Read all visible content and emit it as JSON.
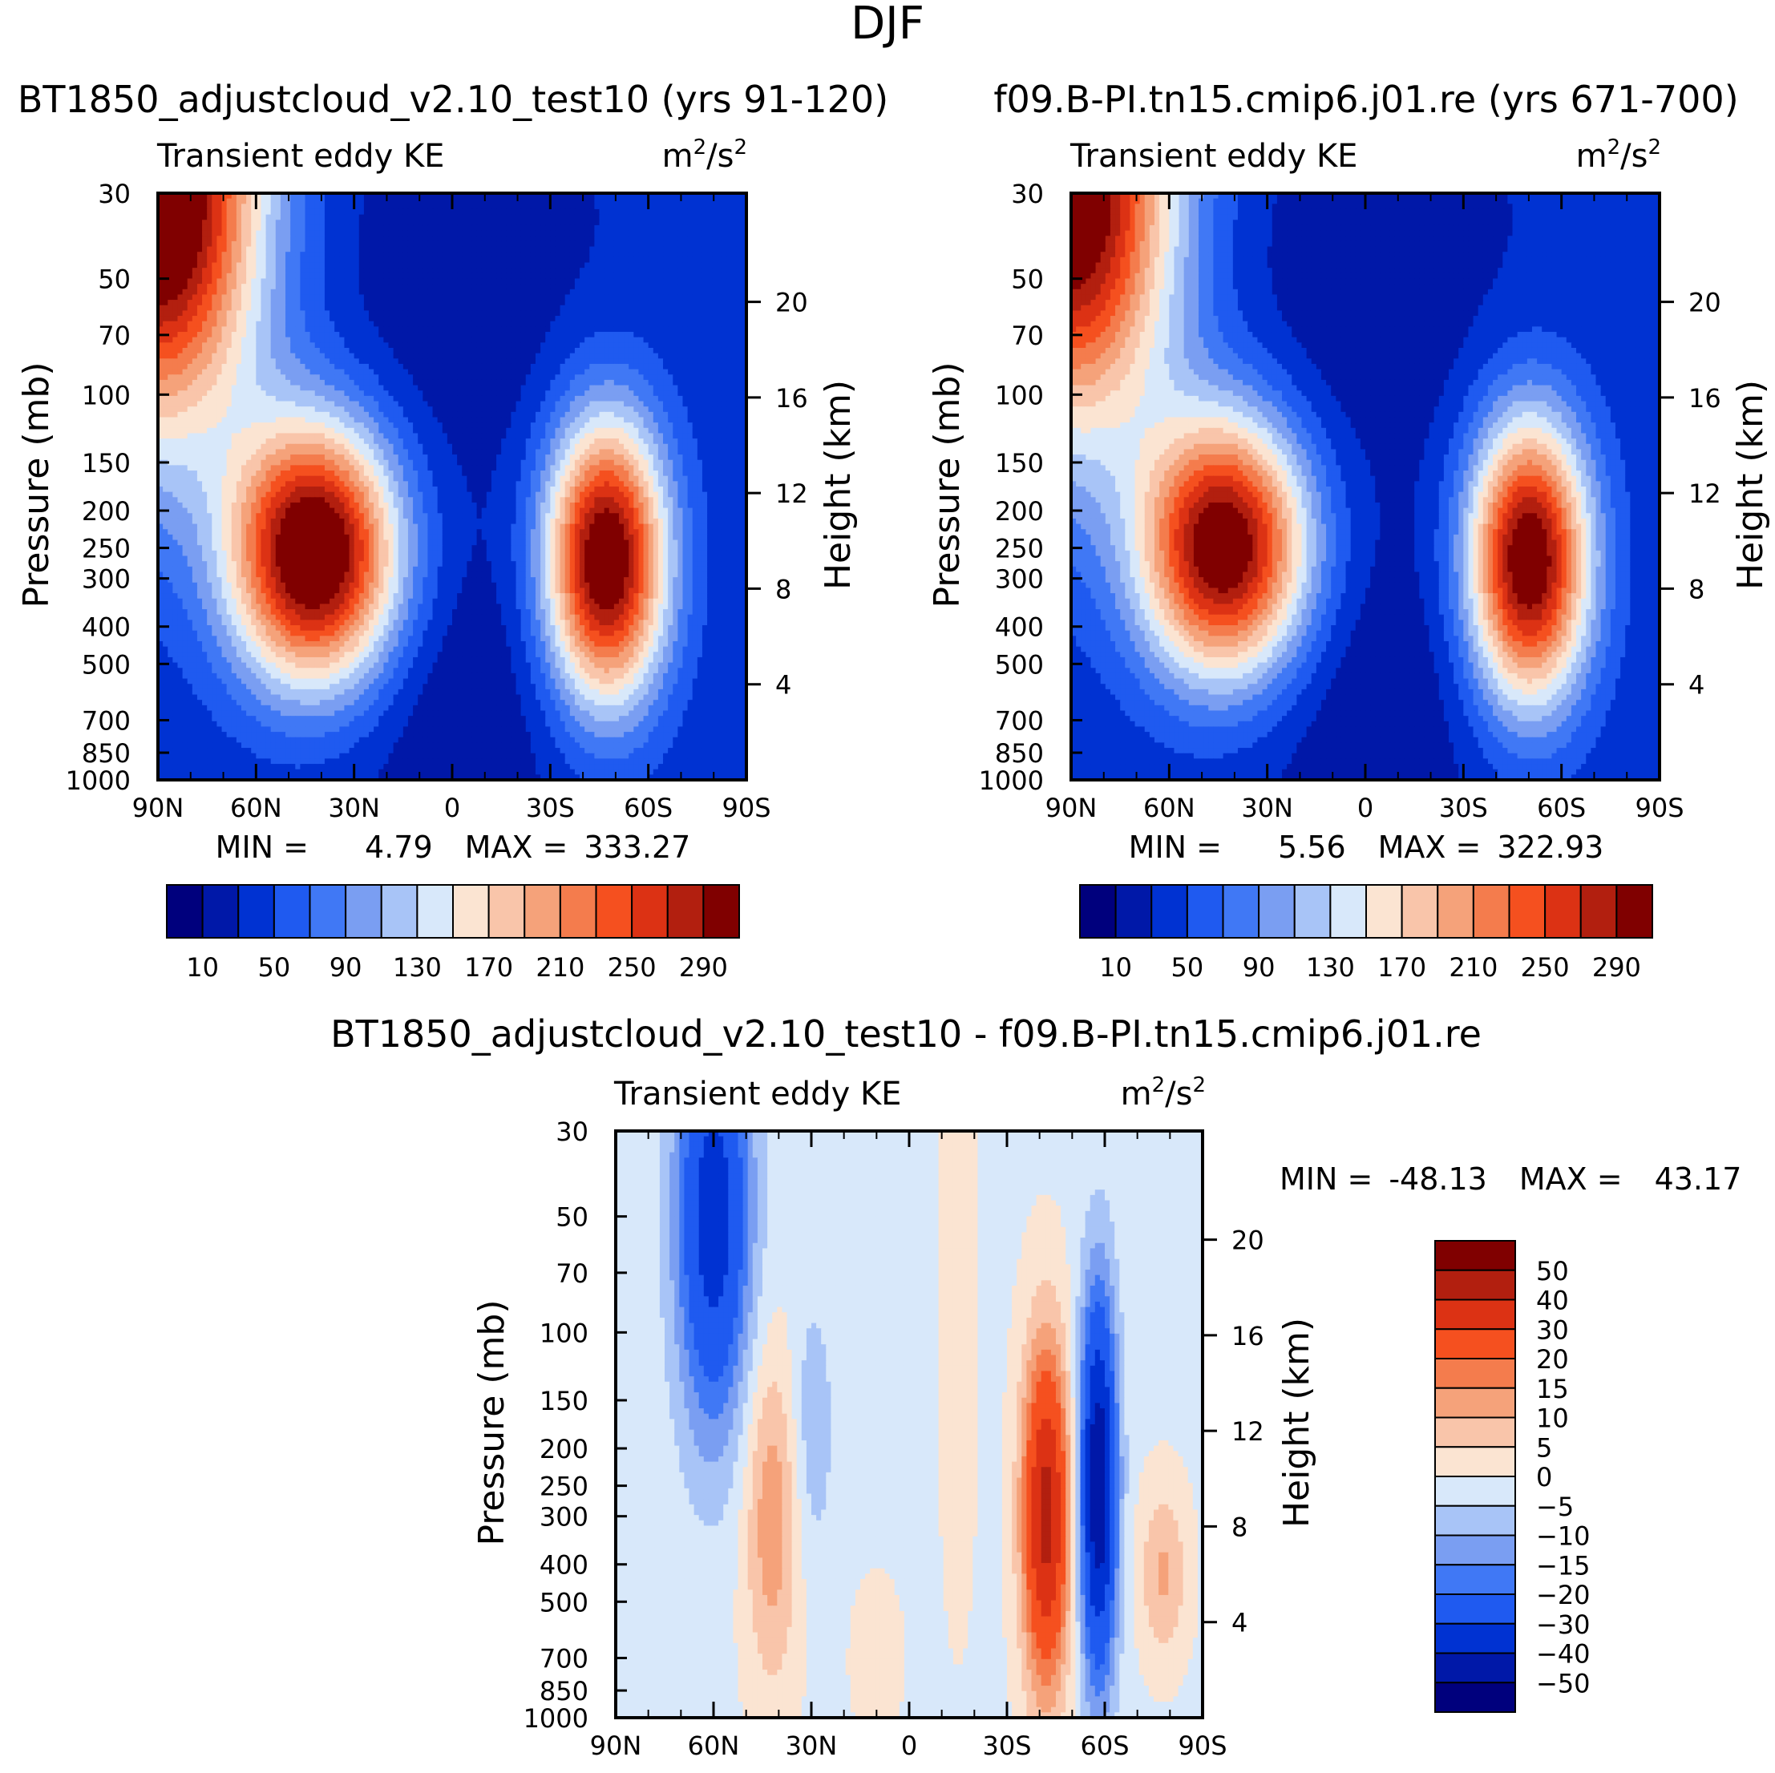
{
  "title": "DJF",
  "colors": {
    "abs": [
      "#00007d",
      "#0018a8",
      "#0032d2",
      "#1f5af0",
      "#4078f5",
      "#7a9ef2",
      "#a8c4f7",
      "#d8e8fa",
      "#fbe4d2",
      "#f9c5aa",
      "#f5a27a",
      "#f47c4d",
      "#f5501f",
      "#dc3214",
      "#b21f0f",
      "#800000"
    ],
    "diff": [
      "#00007d",
      "#0018a8",
      "#0032d2",
      "#1f5af0",
      "#4078f5",
      "#7a9ef2",
      "#a8c4f7",
      "#d8e8fa",
      "#fbe4d2",
      "#f9c5aa",
      "#f5a27a",
      "#f47c4d",
      "#f5501f",
      "#dc3214",
      "#b21f0f",
      "#800000"
    ]
  },
  "chart_data": [
    {
      "type": "heatmap",
      "title": "BT1850_adjustcloud_v2.10_test10 (yrs 91-120)",
      "subtitle_left": "Transient eddy KE",
      "units": "m²/s²",
      "units_base": "m",
      "units_mid": "/s",
      "units_sup": "2",
      "xlabel": "",
      "ylabel": "Pressure (mb)",
      "ylabel_right": "Height (km)",
      "x_ticks": [
        "90N",
        "60N",
        "30N",
        "0",
        "30S",
        "60S",
        "90S"
      ],
      "y_ticks": [
        "30",
        "50",
        "70",
        "100",
        "150",
        "200",
        "250",
        "300",
        "400",
        "500",
        "700",
        "850",
        "1000"
      ],
      "y_ticks_right": [
        "20",
        "16",
        "12",
        "8",
        "4"
      ],
      "xlim": [
        90,
        -90
      ],
      "ylim_mb": [
        1000,
        30
      ],
      "min_label": "MIN =",
      "min_value": "4.79",
      "max_label": "MAX =",
      "max_value": "333.27",
      "levels": [
        10,
        30,
        50,
        70,
        90,
        110,
        130,
        150,
        170,
        190,
        210,
        230,
        250,
        270,
        290
      ],
      "colorbar_labels": [
        "10",
        "50",
        "90",
        "130",
        "170",
        "210",
        "250",
        "290"
      ],
      "background": 35,
      "features": [
        {
          "lat": 42,
          "p": 260,
          "amp": 310,
          "sx": 18,
          "sy": 0.55
        },
        {
          "lat": -47,
          "p": 270,
          "amp": 295,
          "sx": 13,
          "sy": 0.6
        },
        {
          "lat": 90,
          "p": 30,
          "amp": 320,
          "sx": 22,
          "sy": 1.0
        },
        {
          "lat": 0,
          "p": 60,
          "amp": -22,
          "sx": 30,
          "sy": 0.8
        },
        {
          "lat": 0,
          "p": 600,
          "amp": -25,
          "sx": 30,
          "sy": 0.7
        }
      ]
    },
    {
      "type": "heatmap",
      "title": "f09.B-PI.tn15.cmip6.j01.re (yrs 671-700)",
      "subtitle_left": "Transient eddy KE",
      "units": "m²/s²",
      "units_base": "m",
      "units_mid": "/s",
      "units_sup": "2",
      "xlabel": "",
      "ylabel": "Pressure (mb)",
      "ylabel_right": "Height (km)",
      "x_ticks": [
        "90N",
        "60N",
        "30N",
        "0",
        "30S",
        "60S",
        "90S"
      ],
      "y_ticks": [
        "30",
        "50",
        "70",
        "100",
        "150",
        "200",
        "250",
        "300",
        "400",
        "500",
        "700",
        "850",
        "1000"
      ],
      "y_ticks_right": [
        "20",
        "16",
        "12",
        "8",
        "4"
      ],
      "xlim": [
        90,
        -90
      ],
      "ylim_mb": [
        1000,
        30
      ],
      "min_label": "MIN =",
      "min_value": "5.56",
      "max_label": "MAX =",
      "max_value": "322.93",
      "levels": [
        10,
        30,
        50,
        70,
        90,
        110,
        130,
        150,
        170,
        190,
        210,
        230,
        250,
        270,
        290
      ],
      "colorbar_labels": [
        "10",
        "50",
        "90",
        "130",
        "170",
        "210",
        "250",
        "290"
      ],
      "background": 35,
      "features": [
        {
          "lat": 43,
          "p": 250,
          "amp": 290,
          "sx": 18,
          "sy": 0.55
        },
        {
          "lat": -50,
          "p": 270,
          "amp": 290,
          "sx": 13,
          "sy": 0.6
        },
        {
          "lat": 90,
          "p": 30,
          "amp": 300,
          "sx": 22,
          "sy": 1.0
        },
        {
          "lat": 0,
          "p": 60,
          "amp": -22,
          "sx": 30,
          "sy": 0.8
        },
        {
          "lat": 0,
          "p": 600,
          "amp": -25,
          "sx": 30,
          "sy": 0.7
        }
      ]
    },
    {
      "type": "heatmap",
      "title": "BT1850_adjustcloud_v2.10_test10 - f09.B-PI.tn15.cmip6.j01.re",
      "subtitle_left": "Transient eddy KE",
      "units": "m²/s²",
      "units_base": "m",
      "units_mid": "/s",
      "units_sup": "2",
      "xlabel": "",
      "ylabel": "Pressure (mb)",
      "ylabel_right": "Height (km)",
      "x_ticks": [
        "90N",
        "60N",
        "30N",
        "0",
        "30S",
        "60S",
        "90S"
      ],
      "y_ticks": [
        "30",
        "50",
        "70",
        "100",
        "150",
        "200",
        "250",
        "300",
        "400",
        "500",
        "700",
        "850",
        "1000"
      ],
      "y_ticks_right": [
        "20",
        "16",
        "12",
        "8",
        "4"
      ],
      "xlim": [
        90,
        -90
      ],
      "ylim_mb": [
        1000,
        30
      ],
      "min_label": "MIN =",
      "min_value": "-48.13",
      "max_label": "MAX =",
      "max_value": "43.17",
      "levels": [
        -50,
        -40,
        -30,
        -20,
        -15,
        -10,
        -5,
        0,
        5,
        10,
        15,
        20,
        30,
        40,
        50
      ],
      "colorbar_labels": [
        "50",
        "40",
        "30",
        "20",
        "15",
        "10",
        "5",
        "0",
        "−5",
        "−10",
        "−15",
        "−20",
        "−30",
        "−40",
        "−50"
      ],
      "background": -1,
      "features": [
        {
          "lat": -42,
          "p": 300,
          "amp": 45,
          "sx": 5,
          "sy": 0.7
        },
        {
          "lat": -58,
          "p": 250,
          "amp": -48,
          "sx": 4,
          "sy": 0.8
        },
        {
          "lat": 60,
          "p": 50,
          "amp": -35,
          "sx": 8,
          "sy": 0.9
        },
        {
          "lat": 42,
          "p": 300,
          "amp": 15,
          "sx": 6,
          "sy": 0.7
        },
        {
          "lat": 30,
          "p": 180,
          "amp": -8,
          "sx": 5,
          "sy": 0.6
        },
        {
          "lat": -78,
          "p": 420,
          "amp": 12,
          "sx": 5,
          "sy": 0.35
        },
        {
          "lat": -15,
          "p": 100,
          "amp": 4,
          "sx": 4,
          "sy": 1.2
        },
        {
          "lat": 10,
          "p": 700,
          "amp": 5,
          "sx": 5,
          "sy": 0.3
        }
      ]
    }
  ]
}
